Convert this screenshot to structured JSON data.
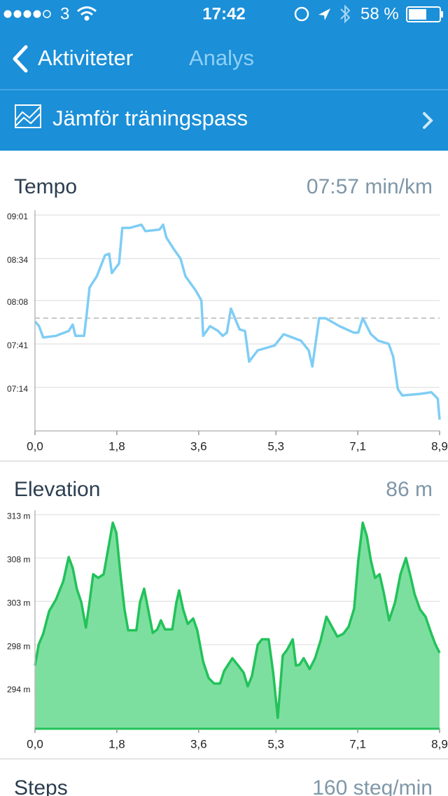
{
  "status_bar": {
    "carrier": "3",
    "time": "17:42",
    "battery": "58 %"
  },
  "nav": {
    "back": "Aktiviteter",
    "title": "Analys"
  },
  "compare_button": "Jämför träningspass",
  "chart_data": [
    {
      "type": "line",
      "title": "Tempo",
      "summary": "07:57 min/km",
      "color": "#7fcdf4",
      "average": 477,
      "x": [
        0,
        0.09,
        0.18,
        0.46,
        0.74,
        0.83,
        0.89,
        1.08,
        1.14,
        1.2,
        1.36,
        1.54,
        1.63,
        1.69,
        1.85,
        1.92,
        2.08,
        2.34,
        2.43,
        2.74,
        2.82,
        2.89,
        3.05,
        3.2,
        3.31,
        3.54,
        3.66,
        3.7,
        3.85,
        4.03,
        4.13,
        4.22,
        4.31,
        4.5,
        4.62,
        4.71,
        4.9,
        5.27,
        5.47,
        5.85,
        6.02,
        6.1,
        6.25,
        6.39,
        6.7,
        7.01,
        7.11,
        7.21,
        7.39,
        7.55,
        7.78,
        7.88,
        7.98,
        8.08,
        8.47,
        8.72,
        8.86,
        8.9
      ],
      "values": [
        475,
        472,
        465,
        466,
        469,
        473,
        466,
        466,
        480,
        496,
        503,
        516,
        517,
        505,
        511,
        533,
        533,
        535,
        531,
        532,
        535,
        527,
        520,
        514,
        503,
        494,
        488,
        466,
        472,
        469,
        466,
        468,
        483,
        470,
        469,
        450,
        457,
        460,
        467,
        463,
        457,
        447,
        477,
        477,
        472,
        468,
        468,
        477,
        467,
        463,
        461,
        453,
        433,
        429,
        430,
        431,
        427,
        414
      ],
      "xlim": [
        0,
        8.9
      ],
      "xticks": [
        {
          "value": 0,
          "label": "0,0"
        },
        {
          "value": 1.8,
          "label": "1,8"
        },
        {
          "value": 3.6,
          "label": "3,6"
        },
        {
          "value": 5.3,
          "label": "5,3"
        },
        {
          "value": 7.1,
          "label": "7,1"
        },
        {
          "value": 8.9,
          "label": "8,9"
        }
      ],
      "ylim": [
        407,
        544
      ],
      "yticks": [
        {
          "value": 541,
          "label": "09:01"
        },
        {
          "value": 514,
          "label": "08:34"
        },
        {
          "value": 488,
          "label": "08:08"
        },
        {
          "value": 461,
          "label": "07:41"
        },
        {
          "value": 434,
          "label": "07:14"
        }
      ],
      "grid": true
    },
    {
      "type": "area",
      "title": "Elevation",
      "summary": "86 m",
      "color": "#22c25a",
      "fill_color": "#7ddf9f",
      "x": [
        0,
        0.08,
        0.18,
        0.31,
        0.46,
        0.62,
        0.74,
        0.83,
        0.92,
        1.02,
        1.12,
        1.2,
        1.28,
        1.39,
        1.51,
        1.62,
        1.71,
        1.79,
        1.88,
        1.97,
        2.05,
        2.16,
        2.23,
        2.31,
        2.4,
        2.49,
        2.59,
        2.69,
        2.77,
        2.86,
        3.02,
        3.11,
        3.17,
        3.26,
        3.36,
        3.48,
        3.57,
        3.7,
        3.82,
        3.94,
        4.07,
        4.16,
        4.34,
        4.47,
        4.59,
        4.68,
        4.77,
        4.9,
        4.99,
        5.14,
        5.24,
        5.34,
        5.45,
        5.54,
        5.67,
        5.74,
        5.82,
        5.91,
        6.04,
        6.16,
        6.28,
        6.41,
        6.53,
        6.65,
        6.78,
        6.9,
        7.02,
        7.11,
        7.21,
        7.3,
        7.39,
        7.48,
        7.58,
        7.67,
        7.79,
        7.92,
        8.04,
        8.16,
        8.25,
        8.35,
        8.47,
        8.59,
        8.72,
        8.81,
        8.9
      ],
      "values": [
        296.1,
        298.4,
        299.6,
        302.1,
        303.4,
        305.4,
        308.1,
        306.9,
        304.6,
        303.1,
        300.3,
        303.1,
        306.2,
        305.8,
        306.2,
        309.3,
        311.9,
        310.8,
        306.2,
        302.3,
        300.0,
        300.0,
        300.0,
        303.1,
        304.6,
        302.3,
        299.7,
        300.1,
        301.1,
        300.1,
        300.1,
        303.1,
        304.4,
        302.3,
        300.7,
        301.3,
        300.0,
        296.5,
        294.7,
        294.1,
        294.1,
        295.5,
        296.9,
        296.1,
        295.3,
        293.8,
        294.9,
        298.4,
        299.0,
        299.0,
        295.3,
        290.3,
        297.2,
        297.8,
        299.0,
        296.1,
        296.2,
        296.9,
        295.7,
        296.9,
        298.8,
        301.5,
        300.4,
        299.3,
        299.6,
        300.4,
        302.4,
        307.7,
        311.9,
        310.4,
        307.7,
        305.8,
        306.2,
        304.2,
        301.1,
        303.1,
        306.2,
        308.0,
        306.2,
        304.0,
        302.3,
        301.5,
        299.6,
        298.4,
        297.5
      ],
      "xlim": [
        0,
        8.9
      ],
      "xticks": [
        {
          "value": 0,
          "label": "0,0"
        },
        {
          "value": 1.8,
          "label": "1,8"
        },
        {
          "value": 3.6,
          "label": "3,6"
        },
        {
          "value": 5.3,
          "label": "5,3"
        },
        {
          "value": 7.1,
          "label": "7,1"
        },
        {
          "value": 8.9,
          "label": "8,9"
        }
      ],
      "ylim": [
        289.1,
        313.3
      ],
      "yticks": [
        {
          "value": 312.8,
          "label": "313 m"
        },
        {
          "value": 308.0,
          "label": "308 m"
        },
        {
          "value": 303.2,
          "label": "303 m"
        },
        {
          "value": 298.4,
          "label": "298 m"
        },
        {
          "value": 293.6,
          "label": "294 m"
        }
      ],
      "grid": true
    }
  ],
  "steps": {
    "title": "Steps",
    "summary": "160 steg/min"
  }
}
